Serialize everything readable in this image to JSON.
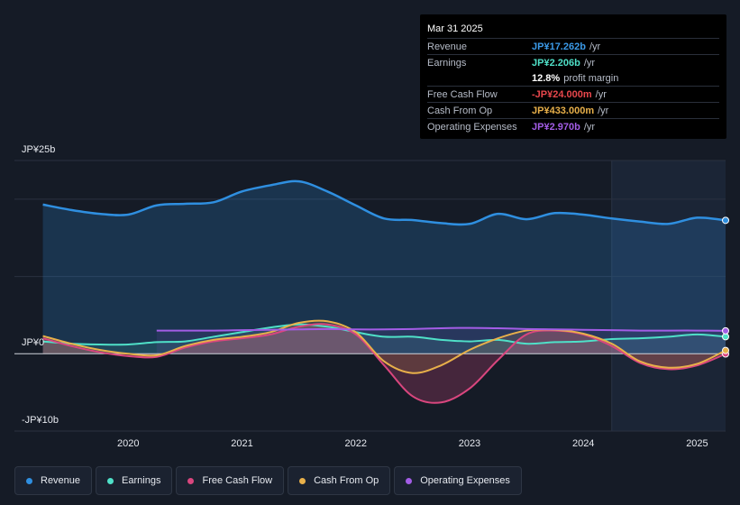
{
  "tooltip": {
    "date": "Mar 31 2025",
    "rows": [
      {
        "label": "Revenue",
        "value": "JP¥17.262b",
        "suffix": "/yr",
        "color": "#3b9ae8"
      },
      {
        "label": "Earnings",
        "value": "JP¥2.206b",
        "suffix": "/yr",
        "color": "#4fe0c8"
      },
      {
        "label": "",
        "value": "12.8%",
        "suffix": "profit margin",
        "color": "#ffffff"
      },
      {
        "label": "Free Cash Flow",
        "value": "-JP¥24.000m",
        "suffix": "/yr",
        "color": "#e8474c"
      },
      {
        "label": "Cash From Op",
        "value": "JP¥433.000m",
        "suffix": "/yr",
        "color": "#e8b04a"
      },
      {
        "label": "Operating Expenses",
        "value": "JP¥2.970b",
        "suffix": "/yr",
        "color": "#a35de6"
      }
    ]
  },
  "legend": [
    {
      "label": "Revenue",
      "color": "#2f8fe0"
    },
    {
      "label": "Earnings",
      "color": "#4fe0c8"
    },
    {
      "label": "Free Cash Flow",
      "color": "#d9467e"
    },
    {
      "label": "Cash From Op",
      "color": "#e8b04a"
    },
    {
      "label": "Operating Expenses",
      "color": "#a35de6"
    }
  ],
  "chart_data": {
    "type": "area",
    "title": "",
    "ylabel": "",
    "ylim": [
      -10,
      25
    ],
    "y_ticks": [
      "JP¥25b",
      "JP¥0",
      "-JP¥10b"
    ],
    "x_ticks": [
      "2020",
      "2021",
      "2022",
      "2023",
      "2024",
      "2025"
    ],
    "x_tick_values": [
      2020,
      2021,
      2022,
      2023,
      2024,
      2025
    ],
    "xlim": [
      2019.0,
      2025.25
    ],
    "forecast_start": 2024.25,
    "series": [
      {
        "name": "Revenue",
        "color": "#2f8fe0",
        "x": [
          2019.25,
          2019.5,
          2019.75,
          2020,
          2020.25,
          2020.5,
          2020.75,
          2021,
          2021.25,
          2021.5,
          2021.75,
          2022,
          2022.25,
          2022.5,
          2022.75,
          2023,
          2023.25,
          2023.5,
          2023.75,
          2024,
          2024.25,
          2024.5,
          2024.75,
          2025,
          2025.25
        ],
        "values": [
          19.3,
          18.6,
          18.1,
          18.0,
          19.2,
          19.4,
          19.6,
          21.0,
          21.8,
          22.3,
          21.0,
          19.2,
          17.5,
          17.3,
          16.9,
          16.8,
          18.1,
          17.4,
          18.2,
          18.0,
          17.5,
          17.1,
          16.8,
          17.6,
          17.262
        ]
      },
      {
        "name": "Earnings",
        "color": "#4fe0c8",
        "x": [
          2019.25,
          2019.5,
          2019.75,
          2020,
          2020.25,
          2020.5,
          2020.75,
          2021,
          2021.25,
          2021.5,
          2021.75,
          2022,
          2022.25,
          2022.5,
          2022.75,
          2023,
          2023.25,
          2023.5,
          2023.75,
          2024,
          2024.25,
          2024.5,
          2024.75,
          2025,
          2025.25
        ],
        "values": [
          1.6,
          1.3,
          1.2,
          1.2,
          1.5,
          1.6,
          2.2,
          2.8,
          3.4,
          3.8,
          3.5,
          2.8,
          2.2,
          2.2,
          1.8,
          1.6,
          1.8,
          1.3,
          1.5,
          1.6,
          1.9,
          2.0,
          2.2,
          2.5,
          2.206
        ]
      },
      {
        "name": "Free Cash Flow",
        "color": "#d9467e",
        "x": [
          2019.25,
          2019.5,
          2019.75,
          2020,
          2020.25,
          2020.5,
          2020.75,
          2021,
          2021.25,
          2021.5,
          2021.75,
          2022,
          2022.25,
          2022.5,
          2022.75,
          2023,
          2023.25,
          2023.5,
          2023.75,
          2024,
          2024.25,
          2024.5,
          2024.75,
          2025,
          2025.25
        ],
        "values": [
          2.0,
          1.0,
          0.2,
          -0.3,
          -0.4,
          0.8,
          1.6,
          2.0,
          2.5,
          3.5,
          3.8,
          2.5,
          -1.5,
          -5.5,
          -6.3,
          -4.5,
          -0.8,
          2.5,
          3.0,
          2.5,
          1.0,
          -1.2,
          -2.0,
          -1.5,
          -0.024
        ]
      },
      {
        "name": "Cash From Op",
        "color": "#e8b04a",
        "x": [
          2019.25,
          2019.5,
          2019.75,
          2020,
          2020.25,
          2020.5,
          2020.75,
          2021,
          2021.25,
          2021.5,
          2021.75,
          2022,
          2022.25,
          2022.5,
          2022.75,
          2023,
          2023.25,
          2023.5,
          2023.75,
          2024,
          2024.25,
          2024.5,
          2024.75,
          2025,
          2025.25
        ],
        "values": [
          2.3,
          1.3,
          0.5,
          0.0,
          -0.2,
          1.0,
          1.8,
          2.2,
          2.8,
          4.0,
          4.2,
          2.8,
          -1.0,
          -2.5,
          -1.5,
          0.5,
          2.0,
          3.0,
          3.1,
          2.6,
          1.3,
          -1.0,
          -1.8,
          -1.3,
          0.433
        ]
      },
      {
        "name": "Operating Expenses",
        "color": "#a35de6",
        "x": [
          2020.25,
          2020.5,
          2020.75,
          2021,
          2021.25,
          2021.5,
          2021.75,
          2022,
          2022.25,
          2022.5,
          2022.75,
          2023,
          2023.25,
          2023.5,
          2023.75,
          2024,
          2024.25,
          2024.5,
          2024.75,
          2025,
          2025.25
        ],
        "values": [
          3.0,
          3.0,
          3.0,
          3.05,
          3.1,
          3.15,
          3.2,
          3.15,
          3.15,
          3.2,
          3.3,
          3.35,
          3.3,
          3.2,
          3.15,
          3.1,
          3.05,
          3.0,
          3.0,
          3.0,
          2.97
        ]
      }
    ]
  }
}
